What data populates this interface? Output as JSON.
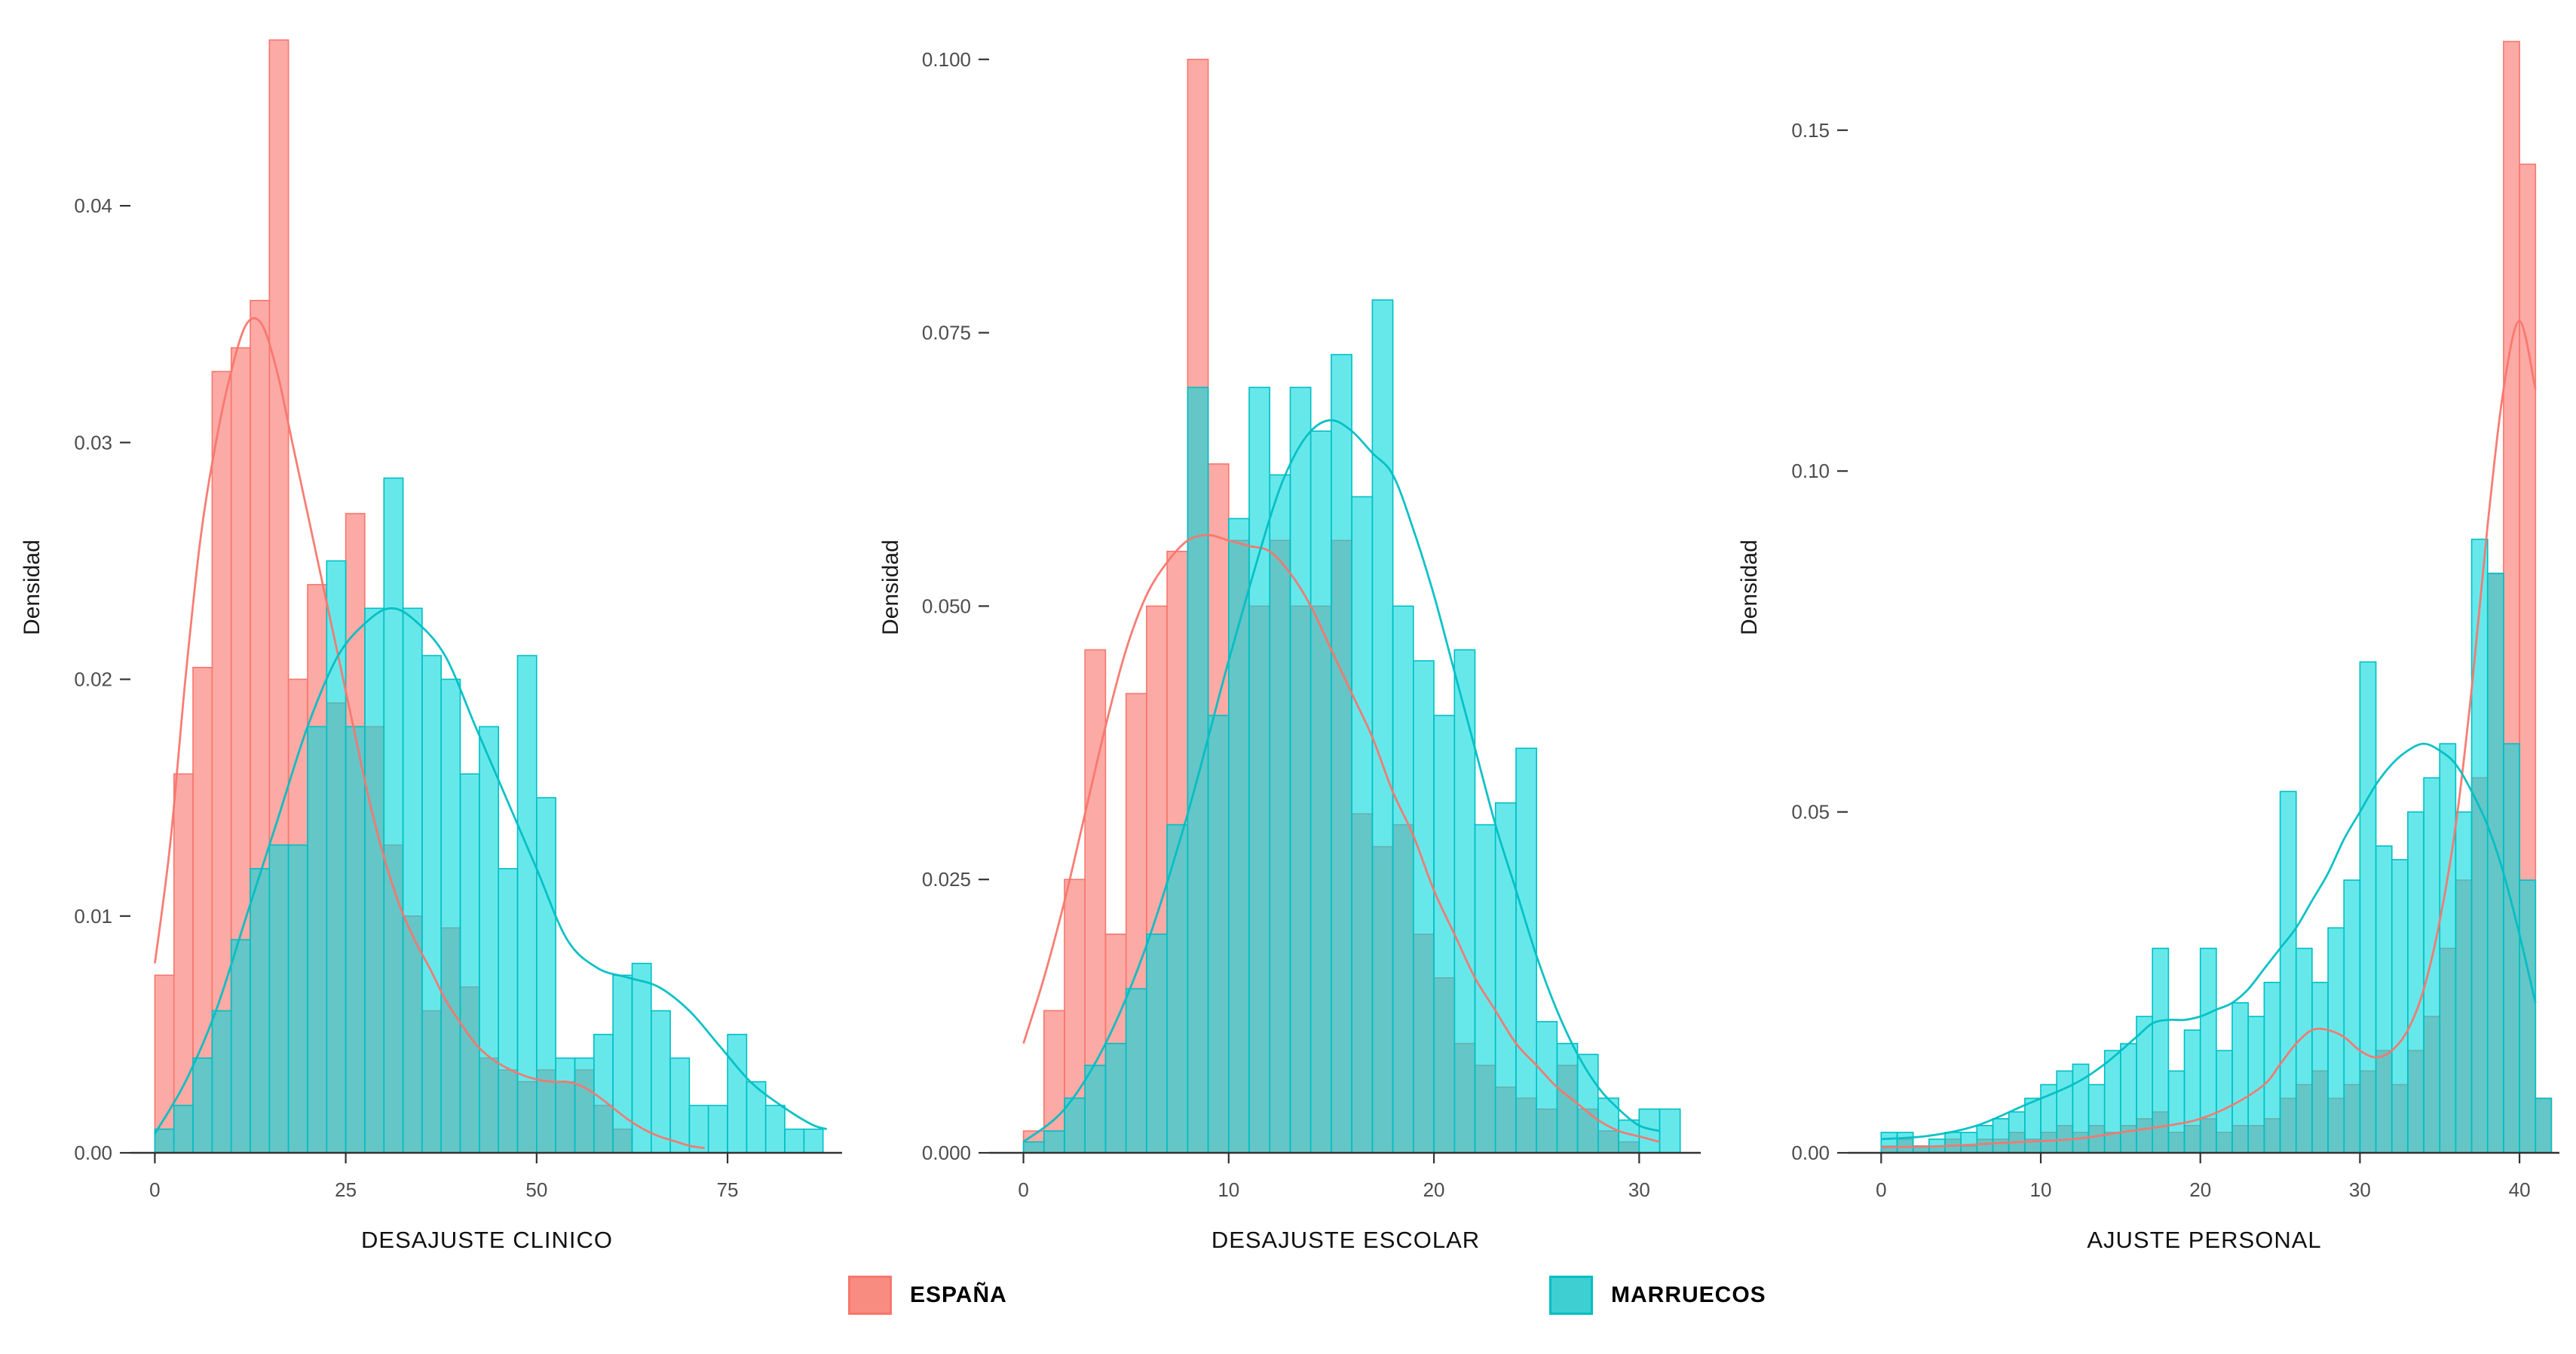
{
  "legend": {
    "items": [
      {
        "label": "ESPAÑA",
        "color": "#F8766D",
        "swatch_fill": "#F98C81"
      },
      {
        "label": "MARRUECOS",
        "color": "#00BFC4",
        "swatch_fill": "#3ECFD3"
      }
    ]
  },
  "chart_data": [
    {
      "type": "histogram_density",
      "xlabel": "DESAJUSTE CLINICO",
      "ylabel": "Densidad",
      "xlim": [
        -3,
        90
      ],
      "ylim": [
        0,
        0.0478
      ],
      "xticks": [
        0,
        25,
        50,
        75
      ],
      "xtick_labels": [
        "0",
        "25",
        "50",
        "75"
      ],
      "yticks": [
        0,
        0.01,
        0.02,
        0.03,
        0.04
      ],
      "ytick_labels": [
        "0.00",
        "0.01",
        "0.02",
        "0.03",
        "0.04"
      ],
      "binwidth": 2.5,
      "series": [
        {
          "name": "ESPAÑA",
          "color": "#F8766D",
          "fill": "#F8766D",
          "fill_opacity": 0.62,
          "bin_start": 0,
          "densities": [
            0.0075,
            0.016,
            0.0205,
            0.033,
            0.034,
            0.036,
            0.047,
            0.02,
            0.024,
            0.019,
            0.027,
            0.018,
            0.013,
            0.01,
            0.006,
            0.0095,
            0.007,
            0.004,
            0.0035,
            0.003,
            0.0035,
            0.003,
            0.0035,
            0.002,
            0.001
          ]
        },
        {
          "name": "MARRUECOS",
          "color": "#00BFC4",
          "fill": "#00D9DE",
          "fill_opacity": 0.6,
          "bin_start": 0,
          "densities": [
            0.001,
            0.002,
            0.004,
            0.006,
            0.009,
            0.012,
            0.013,
            0.013,
            0.018,
            0.025,
            0.018,
            0.023,
            0.0285,
            0.023,
            0.021,
            0.02,
            0.016,
            0.018,
            0.012,
            0.021,
            0.015,
            0.004,
            0.004,
            0.005,
            0.0075,
            0.008,
            0.006,
            0.004,
            0.002,
            0.002,
            0.005,
            0.003,
            0.002,
            0.001,
            0.001
          ]
        }
      ],
      "curves": [
        {
          "name": "ESPAÑA",
          "color": "#F8766D",
          "points": [
            [
              0,
              0.008
            ],
            [
              2,
              0.013
            ],
            [
              4,
              0.02
            ],
            [
              6,
              0.026
            ],
            [
              8,
              0.03
            ],
            [
              10,
              0.033
            ],
            [
              12,
              0.035
            ],
            [
              14,
              0.035
            ],
            [
              16,
              0.033
            ],
            [
              18,
              0.03
            ],
            [
              20,
              0.027
            ],
            [
              22,
              0.024
            ],
            [
              24,
              0.021
            ],
            [
              26,
              0.018
            ],
            [
              28,
              0.015
            ],
            [
              30,
              0.0125
            ],
            [
              32,
              0.0105
            ],
            [
              34,
              0.009
            ],
            [
              36,
              0.0078
            ],
            [
              38,
              0.0065
            ],
            [
              40,
              0.0055
            ],
            [
              42,
              0.0046
            ],
            [
              44,
              0.004
            ],
            [
              46,
              0.0036
            ],
            [
              48,
              0.0033
            ],
            [
              50,
              0.0031
            ],
            [
              52,
              0.003
            ],
            [
              54,
              0.003
            ],
            [
              56,
              0.0028
            ],
            [
              58,
              0.0024
            ],
            [
              60,
              0.0019
            ],
            [
              62,
              0.0014
            ],
            [
              64,
              0.001
            ],
            [
              66,
              0.0007
            ],
            [
              68,
              0.0005
            ],
            [
              70,
              0.0003
            ],
            [
              72,
              0.0002
            ]
          ]
        },
        {
          "name": "MARRUECOS",
          "color": "#00BFC4",
          "points": [
            [
              0,
              0.0008
            ],
            [
              4,
              0.003
            ],
            [
              8,
              0.006
            ],
            [
              12,
              0.01
            ],
            [
              16,
              0.014
            ],
            [
              20,
              0.018
            ],
            [
              24,
              0.021
            ],
            [
              28,
              0.0225
            ],
            [
              31,
              0.023
            ],
            [
              34,
              0.0225
            ],
            [
              38,
              0.021
            ],
            [
              42,
              0.018
            ],
            [
              46,
              0.015
            ],
            [
              50,
              0.012
            ],
            [
              54,
              0.009
            ],
            [
              58,
              0.0078
            ],
            [
              62,
              0.0074
            ],
            [
              66,
              0.007
            ],
            [
              70,
              0.006
            ],
            [
              74,
              0.0045
            ],
            [
              78,
              0.003
            ],
            [
              82,
              0.002
            ],
            [
              86,
              0.0012
            ],
            [
              88,
              0.001
            ]
          ]
        }
      ]
    },
    {
      "type": "histogram_density",
      "xlabel": "DESAJUSTE ESCOLAR",
      "ylabel": "Densidad",
      "xlim": [
        -1.6,
        33
      ],
      "ylim": [
        0,
        0.1035
      ],
      "xticks": [
        0,
        10,
        20,
        30
      ],
      "xtick_labels": [
        "0",
        "10",
        "20",
        "30"
      ],
      "yticks": [
        0,
        0.025,
        0.05,
        0.075,
        0.1
      ],
      "ytick_labels": [
        "0.000",
        "0.025",
        "0.050",
        "0.075",
        "0.100"
      ],
      "binwidth": 1,
      "series": [
        {
          "name": "ESPAÑA",
          "color": "#F8766D",
          "fill": "#F8766D",
          "fill_opacity": 0.62,
          "bin_start": 0,
          "densities": [
            0.002,
            0.013,
            0.025,
            0.046,
            0.02,
            0.042,
            0.05,
            0.055,
            0.1,
            0.063,
            0.056,
            0.05,
            0.056,
            0.05,
            0.05,
            0.056,
            0.031,
            0.028,
            0.03,
            0.02,
            0.016,
            0.01,
            0.008,
            0.006,
            0.005,
            0.004,
            0.008,
            0.004,
            0.002,
            0.001
          ]
        },
        {
          "name": "MARRUECOS",
          "color": "#00BFC4",
          "fill": "#00D9DE",
          "fill_opacity": 0.6,
          "bin_start": 0,
          "densities": [
            0.001,
            0.002,
            0.005,
            0.008,
            0.01,
            0.015,
            0.02,
            0.03,
            0.07,
            0.04,
            0.058,
            0.07,
            0.062,
            0.07,
            0.066,
            0.073,
            0.06,
            0.078,
            0.05,
            0.045,
            0.04,
            0.046,
            0.03,
            0.032,
            0.037,
            0.012,
            0.01,
            0.009,
            0.005,
            0.003,
            0.004,
            0.004
          ]
        }
      ],
      "curves": [
        {
          "name": "ESPAÑA",
          "color": "#F8766D",
          "points": [
            [
              0,
              0.01
            ],
            [
              1,
              0.016
            ],
            [
              2,
              0.023
            ],
            [
              3,
              0.031
            ],
            [
              4,
              0.039
            ],
            [
              5,
              0.046
            ],
            [
              6,
              0.051
            ],
            [
              7,
              0.054
            ],
            [
              8,
              0.056
            ],
            [
              9,
              0.0565
            ],
            [
              10,
              0.056
            ],
            [
              11,
              0.0555
            ],
            [
              12,
              0.055
            ],
            [
              13,
              0.053
            ],
            [
              14,
              0.05
            ],
            [
              15,
              0.046
            ],
            [
              16,
              0.042
            ],
            [
              17,
              0.038
            ],
            [
              18,
              0.033
            ],
            [
              19,
              0.029
            ],
            [
              20,
              0.024
            ],
            [
              21,
              0.02
            ],
            [
              22,
              0.016
            ],
            [
              23,
              0.013
            ],
            [
              24,
              0.01
            ],
            [
              25,
              0.008
            ],
            [
              26,
              0.006
            ],
            [
              27,
              0.0045
            ],
            [
              28,
              0.003
            ],
            [
              29,
              0.002
            ],
            [
              30,
              0.0015
            ],
            [
              31,
              0.001
            ]
          ]
        },
        {
          "name": "MARRUECOS",
          "color": "#00BFC4",
          "points": [
            [
              0,
              0.001
            ],
            [
              2,
              0.004
            ],
            [
              4,
              0.01
            ],
            [
              6,
              0.019
            ],
            [
              8,
              0.031
            ],
            [
              10,
              0.045
            ],
            [
              12,
              0.058
            ],
            [
              13,
              0.063
            ],
            [
              14,
              0.066
            ],
            [
              15,
              0.067
            ],
            [
              16,
              0.066
            ],
            [
              17,
              0.064
            ],
            [
              18,
              0.062
            ],
            [
              19,
              0.057
            ],
            [
              20,
              0.051
            ],
            [
              21,
              0.044
            ],
            [
              22,
              0.037
            ],
            [
              23,
              0.03
            ],
            [
              24,
              0.024
            ],
            [
              25,
              0.018
            ],
            [
              26,
              0.013
            ],
            [
              27,
              0.009
            ],
            [
              28,
              0.006
            ],
            [
              29,
              0.004
            ],
            [
              30,
              0.0025
            ],
            [
              31,
              0.002
            ]
          ]
        }
      ]
    },
    {
      "type": "histogram_density",
      "xlabel": "AJUSTE PERSONAL",
      "ylabel": "Densidad",
      "xlim": [
        -2,
        42.5
      ],
      "ylim": [
        0,
        0.166
      ],
      "xticks": [
        0,
        10,
        20,
        30,
        40
      ],
      "xtick_labels": [
        "0",
        "10",
        "20",
        "30",
        "40"
      ],
      "yticks": [
        0,
        0.05,
        0.1,
        0.15
      ],
      "ytick_labels": [
        "0.00",
        "0.05",
        "0.10",
        "0.15"
      ],
      "binwidth": 1,
      "series": [
        {
          "name": "ESPAÑA",
          "color": "#F8766D",
          "fill": "#F8766D",
          "fill_opacity": 0.62,
          "bin_start": 0,
          "densities": [
            0.001,
            0.002,
            0.001,
            0.001,
            0.002,
            0.001,
            0.002,
            0.002,
            0.003,
            0.002,
            0.003,
            0.004,
            0.003,
            0.004,
            0.003,
            0.004,
            0.005,
            0.006,
            0.003,
            0.004,
            0.005,
            0.003,
            0.004,
            0.004,
            0.005,
            0.008,
            0.01,
            0.012,
            0.008,
            0.01,
            0.012,
            0.015,
            0.01,
            0.015,
            0.02,
            0.03,
            0.04,
            0.055,
            0.085,
            0.163,
            0.145,
            0.008
          ]
        },
        {
          "name": "MARRUECOS",
          "color": "#00BFC4",
          "fill": "#00D9DE",
          "fill_opacity": 0.6,
          "bin_start": 0,
          "densities": [
            0.003,
            0.003,
            0.001,
            0.002,
            0.003,
            0.003,
            0.004,
            0.005,
            0.006,
            0.008,
            0.01,
            0.012,
            0.013,
            0.01,
            0.015,
            0.016,
            0.02,
            0.03,
            0.012,
            0.018,
            0.03,
            0.015,
            0.022,
            0.02,
            0.025,
            0.053,
            0.03,
            0.025,
            0.033,
            0.04,
            0.072,
            0.045,
            0.043,
            0.05,
            0.055,
            0.06,
            0.05,
            0.09,
            0.085,
            0.06,
            0.04,
            0.008
          ]
        }
      ],
      "curves": [
        {
          "name": "ESPAÑA",
          "color": "#F8766D",
          "points": [
            [
              0,
              0.0008
            ],
            [
              4,
              0.001
            ],
            [
              8,
              0.0015
            ],
            [
              12,
              0.002
            ],
            [
              15,
              0.003
            ],
            [
              18,
              0.004
            ],
            [
              20,
              0.005
            ],
            [
              22,
              0.007
            ],
            [
              24,
              0.01
            ],
            [
              25,
              0.013
            ],
            [
              26,
              0.016
            ],
            [
              27,
              0.018
            ],
            [
              28,
              0.018
            ],
            [
              29,
              0.017
            ],
            [
              30,
              0.015
            ],
            [
              31,
              0.014
            ],
            [
              32,
              0.015
            ],
            [
              33,
              0.018
            ],
            [
              34,
              0.024
            ],
            [
              35,
              0.034
            ],
            [
              36,
              0.048
            ],
            [
              37,
              0.068
            ],
            [
              38,
              0.092
            ],
            [
              39,
              0.112
            ],
            [
              40,
              0.122
            ],
            [
              41,
              0.112
            ]
          ]
        },
        {
          "name": "MARRUECOS",
          "color": "#00BFC4",
          "points": [
            [
              0,
              0.002
            ],
            [
              3,
              0.0025
            ],
            [
              6,
              0.004
            ],
            [
              9,
              0.007
            ],
            [
              12,
              0.01
            ],
            [
              14,
              0.013
            ],
            [
              16,
              0.017
            ],
            [
              17,
              0.019
            ],
            [
              18,
              0.0195
            ],
            [
              19,
              0.0195
            ],
            [
              20,
              0.02
            ],
            [
              21,
              0.021
            ],
            [
              22,
              0.022
            ],
            [
              23,
              0.024
            ],
            [
              24,
              0.027
            ],
            [
              25,
              0.03
            ],
            [
              26,
              0.033
            ],
            [
              27,
              0.037
            ],
            [
              28,
              0.041
            ],
            [
              29,
              0.046
            ],
            [
              30,
              0.05
            ],
            [
              31,
              0.054
            ],
            [
              32,
              0.057
            ],
            [
              33,
              0.059
            ],
            [
              34,
              0.06
            ],
            [
              35,
              0.059
            ],
            [
              36,
              0.057
            ],
            [
              37,
              0.053
            ],
            [
              38,
              0.048
            ],
            [
              39,
              0.041
            ],
            [
              40,
              0.032
            ],
            [
              41,
              0.022
            ]
          ]
        }
      ]
    }
  ]
}
